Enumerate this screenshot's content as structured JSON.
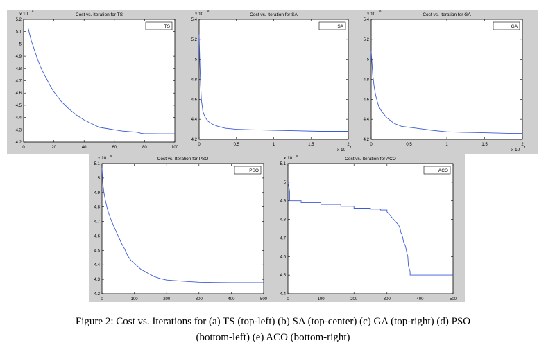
{
  "chart_data": [
    {
      "type": "line",
      "title": "Cost vs. Iteration for TS",
      "exponent_label": "x 10",
      "exponent_value": "6",
      "x_exponent_label": "",
      "x_exponent_value": "",
      "xlim": [
        0,
        100
      ],
      "ylim": [
        4.2,
        5.2
      ],
      "x_ticks": [
        0,
        20,
        40,
        60,
        80,
        100
      ],
      "x_tick_labels": [
        "0",
        "20",
        "40",
        "60",
        "80",
        "100"
      ],
      "y_ticks": [
        4.2,
        4.3,
        4.4,
        4.5,
        4.6,
        4.7,
        4.8,
        4.9,
        5.0,
        5.1,
        5.2
      ],
      "y_tick_labels": [
        "4.2",
        "4.3",
        "4.4",
        "4.5",
        "4.6",
        "4.7",
        "4.8",
        "4.9",
        "5",
        "5.1",
        "5.2"
      ],
      "legend": "top-right",
      "series": [
        {
          "name": "TS",
          "x": [
            3,
            5,
            8,
            10,
            12,
            15,
            18,
            20,
            25,
            30,
            35,
            40,
            45,
            50,
            55,
            60,
            65,
            70,
            75,
            78,
            80,
            85,
            90,
            95,
            100
          ],
          "y": [
            5.13,
            5.03,
            4.92,
            4.85,
            4.79,
            4.72,
            4.65,
            4.61,
            4.53,
            4.47,
            4.42,
            4.38,
            4.35,
            4.32,
            4.31,
            4.3,
            4.29,
            4.285,
            4.28,
            4.27,
            4.268,
            4.268,
            4.267,
            4.267,
            4.267
          ]
        }
      ]
    },
    {
      "type": "line",
      "title": "Cost vs. Iteration for SA",
      "exponent_label": "x 10",
      "exponent_value": "6",
      "x_exponent_label": "x 10",
      "x_exponent_value": "4",
      "xlim": [
        0,
        2
      ],
      "ylim": [
        4.2,
        5.4
      ],
      "x_ticks": [
        0,
        0.5,
        1,
        1.5,
        2
      ],
      "x_tick_labels": [
        "0",
        "0.5",
        "1",
        "1.5",
        "2"
      ],
      "y_ticks": [
        4.2,
        4.4,
        4.6,
        4.8,
        5.0,
        5.2,
        5.4
      ],
      "y_tick_labels": [
        "4.2",
        "4.4",
        "4.6",
        "4.8",
        "5",
        "5.2",
        "5.4"
      ],
      "legend": "top-right",
      "series": [
        {
          "name": "SA",
          "x": [
            0,
            0.01,
            0.02,
            0.03,
            0.05,
            0.08,
            0.12,
            0.18,
            0.25,
            0.35,
            0.5,
            0.7,
            1.0,
            1.3,
            1.6,
            2.0
          ],
          "y": [
            5.25,
            4.95,
            4.75,
            4.6,
            4.48,
            4.42,
            4.38,
            4.35,
            4.33,
            4.31,
            4.3,
            4.295,
            4.29,
            4.285,
            4.28,
            4.28
          ]
        }
      ]
    },
    {
      "type": "line",
      "title": "Cost vs. Iteration for GA",
      "exponent_label": "x 10",
      "exponent_value": "6",
      "x_exponent_label": "x 10",
      "x_exponent_value": "4",
      "xlim": [
        0,
        2
      ],
      "ylim": [
        4.2,
        5.4
      ],
      "x_ticks": [
        0,
        0.5,
        1,
        1.5,
        2
      ],
      "x_tick_labels": [
        "0",
        "0.5",
        "1",
        "1.5",
        "2"
      ],
      "y_ticks": [
        4.2,
        4.4,
        4.6,
        4.8,
        5.0,
        5.2,
        5.4
      ],
      "y_tick_labels": [
        "4.2",
        "4.4",
        "4.6",
        "4.8",
        "5",
        "5.2",
        "5.4"
      ],
      "legend": "top-right",
      "series": [
        {
          "name": "GA",
          "x": [
            0,
            0.02,
            0.04,
            0.06,
            0.08,
            0.1,
            0.13,
            0.16,
            0.2,
            0.25,
            0.3,
            0.4,
            0.5,
            0.6,
            0.8,
            1.0,
            1.2,
            1.5,
            1.8,
            2.0
          ],
          "y": [
            5.08,
            4.85,
            4.72,
            4.64,
            4.58,
            4.53,
            4.49,
            4.46,
            4.42,
            4.39,
            4.36,
            4.33,
            4.32,
            4.31,
            4.29,
            4.275,
            4.27,
            4.265,
            4.26,
            4.26
          ]
        }
      ]
    },
    {
      "type": "line",
      "title": "Cost vs. Iteration for PSO",
      "exponent_label": "x 10",
      "exponent_value": "6",
      "x_exponent_label": "",
      "x_exponent_value": "",
      "xlim": [
        0,
        500
      ],
      "ylim": [
        4.2,
        5.1
      ],
      "x_ticks": [
        0,
        100,
        200,
        300,
        400,
        500
      ],
      "x_tick_labels": [
        "0",
        "100",
        "200",
        "300",
        "400",
        "500"
      ],
      "y_ticks": [
        4.2,
        4.3,
        4.4,
        4.5,
        4.6,
        4.7,
        4.8,
        4.9,
        5.0,
        5.1
      ],
      "y_tick_labels": [
        "4.2",
        "4.3",
        "4.4",
        "4.5",
        "4.6",
        "4.7",
        "4.8",
        "4.9",
        "5",
        "5.1"
      ],
      "legend": "top-right",
      "series": [
        {
          "name": "PSO",
          "x": [
            0,
            3,
            6,
            10,
            15,
            20,
            30,
            40,
            50,
            60,
            70,
            80,
            90,
            100,
            120,
            140,
            160,
            180,
            200,
            230,
            260,
            300,
            350,
            400,
            450,
            500
          ],
          "y": [
            5.07,
            4.95,
            4.9,
            4.85,
            4.8,
            4.76,
            4.7,
            4.65,
            4.6,
            4.55,
            4.51,
            4.46,
            4.43,
            4.41,
            4.37,
            4.345,
            4.32,
            4.305,
            4.295,
            4.29,
            4.285,
            4.28,
            4.278,
            4.277,
            4.277,
            4.277
          ]
        }
      ]
    },
    {
      "type": "line",
      "title": "Cost vs. Iteration for ACO",
      "exponent_label": "x 10",
      "exponent_value": "6",
      "x_exponent_label": "",
      "x_exponent_value": "",
      "xlim": [
        0,
        500
      ],
      "ylim": [
        4.4,
        5.1
      ],
      "x_ticks": [
        0,
        100,
        200,
        300,
        400,
        500
      ],
      "x_tick_labels": [
        "0",
        "100",
        "200",
        "300",
        "400",
        "500"
      ],
      "y_ticks": [
        4.4,
        4.5,
        4.6,
        4.7,
        4.8,
        4.9,
        5.0,
        5.1
      ],
      "y_tick_labels": [
        "4.4",
        "4.5",
        "4.6",
        "4.7",
        "4.8",
        "4.9",
        "5",
        "5.1"
      ],
      "legend": "top-right",
      "series": [
        {
          "name": "ACO",
          "x": [
            0,
            2,
            5,
            5,
            40,
            40,
            100,
            100,
            160,
            160,
            200,
            200,
            250,
            250,
            280,
            280,
            300,
            300,
            310,
            315,
            320,
            325,
            330,
            335,
            340,
            342,
            345,
            348,
            350,
            352,
            355,
            358,
            360,
            363,
            365,
            370,
            370,
            400,
            500
          ],
          "y": [
            5.0,
            4.98,
            4.95,
            4.9,
            4.9,
            4.89,
            4.89,
            4.88,
            4.88,
            4.87,
            4.87,
            4.86,
            4.86,
            4.855,
            4.855,
            4.85,
            4.85,
            4.84,
            4.82,
            4.81,
            4.8,
            4.79,
            4.78,
            4.77,
            4.75,
            4.73,
            4.72,
            4.7,
            4.68,
            4.67,
            4.66,
            4.64,
            4.62,
            4.6,
            4.55,
            4.52,
            4.5,
            4.5,
            4.5
          ]
        }
      ]
    }
  ],
  "caption": {
    "line1": "Figure 2: Cost vs. Iterations for (a) TS (top-left) (b) SA (top-center) (c) GA (top-right) (d) PSO",
    "line2": "(bottom-left) (e) ACO (bottom-right)"
  }
}
